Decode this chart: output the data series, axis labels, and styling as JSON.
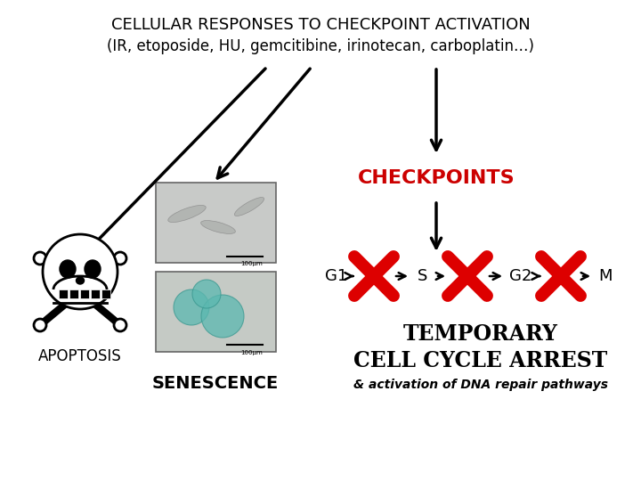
{
  "title_line1": "CELLULAR RESPONSES TO CHECKPOINT ACTIVATION",
  "title_line2": "(IR, etoposide, HU, gemcitibine, irinotecan, carboplatin…)",
  "checkpoints_label": "CHECKPOINTS",
  "apoptosis_label": "APOPTOSIS",
  "senescence_label": "SENESCENCE",
  "temporary_line1": "TEMPORARY",
  "temporary_line2": "CELL CYCLE ARREST",
  "temporary_line3": "& activation of DNA repair pathways",
  "g1_label": "G1",
  "s_label": "S",
  "g2_label": "G2",
  "m_label": "M",
  "bg_color": "#ffffff",
  "title_color": "#000000",
  "checkpoints_color": "#cc0000",
  "arrow_color": "#000000",
  "x_color": "#dd0000",
  "temporary_color": "#000000",
  "apoptosis_color": "#000000",
  "senescence_color": "#000000"
}
